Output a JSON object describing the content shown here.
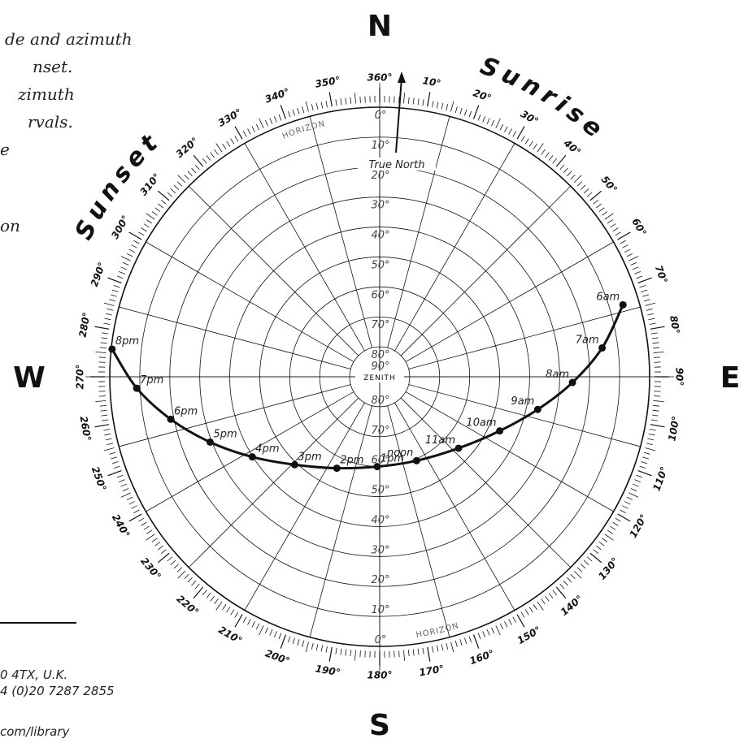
{
  "notes": [
    "de and azimuth",
    "nset.",
    "zimuth",
    "rvals.",
    "e",
    "on"
  ],
  "footer": [
    "0 4TX, U.K.",
    "4 (0)20 7287 2855",
    "com/library"
  ],
  "compass": {
    "north": "N",
    "east": "E",
    "south": "S",
    "west": "W"
  },
  "arc_words": {
    "sunrise": "Sunrise",
    "sunset": "Sunset"
  },
  "azimuth_labels": [
    "360°",
    "10°",
    "20°",
    "30°",
    "40°",
    "50°",
    "60°",
    "70°",
    "80°",
    "90°",
    "100°",
    "110°",
    "120°",
    "130°",
    "140°",
    "150°",
    "160°",
    "170°",
    "180°",
    "190°",
    "200°",
    "210°",
    "220°",
    "230°",
    "240°",
    "250°",
    "260°",
    "270°",
    "280°",
    "290°",
    "300°",
    "310°",
    "320°",
    "330°",
    "340°",
    "350°"
  ],
  "altitude_labels_north": [
    "0°",
    "10°",
    "20°",
    "30°",
    "40°",
    "50°",
    "60°",
    "70°",
    "80°",
    "90°"
  ],
  "altitude_labels_south": [
    "80°",
    "70°",
    "60°",
    "50°",
    "40°",
    "30°",
    "20°",
    "10°",
    "0°"
  ],
  "horizon_label": "HORIZON",
  "zenith_label": "ZENITH",
  "true_north": {
    "label": "True North",
    "bearing_deg": 5
  },
  "sun_path": {
    "points": [
      {
        "label": "6am",
        "azimuth": 73.5,
        "altitude": 5.4
      },
      {
        "label": "7am",
        "azimuth": 82.6,
        "altitude": 15.2
      },
      {
        "label": "8am",
        "azimuth": 91.7,
        "altitude": 25.7
      },
      {
        "label": "9am",
        "azimuth": 101.7,
        "altitude": 36.2
      },
      {
        "label": "10am",
        "azimuth": 114.3,
        "altitude": 46.1
      },
      {
        "label": "11am",
        "azimuth": 132.2,
        "altitude": 54.5
      },
      {
        "label": "noon",
        "azimuth": 156.3,
        "altitude": 59.4
      },
      {
        "label": "1pm",
        "azimuth": 181.6,
        "altitude": 60.0
      },
      {
        "label": "2pm",
        "azimuth": 205.1,
        "altitude": 56.3
      },
      {
        "label": "3pm",
        "azimuth": 224.0,
        "altitude": 49.2
      },
      {
        "label": "4pm",
        "azimuth": 237.8,
        "altitude": 39.8
      },
      {
        "label": "5pm",
        "azimuth": 248.9,
        "altitude": 29.4
      },
      {
        "label": "6pm",
        "azimuth": 258.5,
        "altitude": 18.9
      },
      {
        "label": "7pm",
        "azimuth": 267.3,
        "altitude": 8.9
      },
      {
        "label": "8pm",
        "azimuth": 275.9,
        "altitude": 0.3
      }
    ]
  }
}
